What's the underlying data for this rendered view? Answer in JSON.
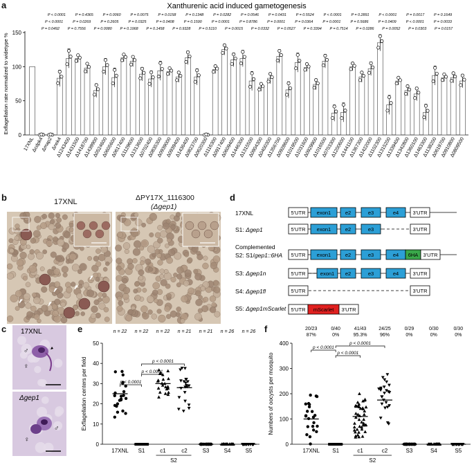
{
  "panels": {
    "a": {
      "letter": "a",
      "title": "Xanthurenic acid induced gametogenesis",
      "ylabel": "Exflagellation rate normalized to widetype %",
      "pvals_row1": [
        "P < 0.0001",
        "P = 0.4365",
        "P = 0.0060",
        "P = 0.0075",
        "P = 0.0158",
        "P = 0.1348",
        "P = 0.0282",
        "P = 0.0546",
        "P = 0.0431",
        "P = 0.5524",
        "P < 0.0001",
        "P = 0.2891",
        "P < 0.0001",
        "P = 0.0017",
        "P = 0.1649"
      ],
      "pvals_row2": [
        "P < 0.0001",
        "P = 0.0269",
        "P = 0.2605",
        "P = 0.0325",
        "P = 0.0408",
        "P = 0.1590",
        "P = 0.0001",
        "P = 0.8786",
        "P = 0.0001",
        "P = 0.0364",
        "P = 0.0001",
        "P = 0.5686",
        "P = 0.0409",
        "P < 0.0001",
        "P = 0.0033"
      ],
      "pvals_row3": [
        "P = 0.0492",
        "P = 0.7556",
        "P = 0.0080",
        "P = 0.1968",
        "P = 0.1458",
        "P = 0.9328",
        "P = 0.5110",
        "P = 0.0015",
        "P = 0.0332",
        "P = 0.0527",
        "P = 0.3394",
        "P = 0.7514",
        "P = 0.0286",
        "P = 0.0052",
        "P = 0.0303",
        "P = 0.0157"
      ]
    },
    "b": {
      "letter": "b",
      "label_left": "17XNL",
      "label_right_1": "ΔPY17X_1116300",
      "label_right_2": "(Δgep1)"
    },
    "c": {
      "letter": "c",
      "label_top": "17XNL",
      "label_bottom": "Δgep1"
    },
    "d": {
      "letter": "d",
      "rows": [
        {
          "label": "17XNL"
        },
        {
          "label": "S1: Δgep1"
        },
        {
          "label": "Complemented"
        },
        {
          "label": "S2: S1/gep1::6HA"
        },
        {
          "label": "S3: Δgep1n"
        },
        {
          "label": "S4: Δgep1fl"
        },
        {
          "label": "S5: Δgep1mScarlet"
        }
      ],
      "utr5": "5'UTR",
      "utr3": "3'UTR",
      "exon1": "exon1",
      "e2": "e2",
      "e3": "e3",
      "e4": "e4",
      "ha": "6HA",
      "mscarlet": "mScarlet",
      "colors": {
        "exon": "#2c9fd6",
        "ha": "#3aa84a",
        "mscarlet": "#e0201f"
      }
    },
    "e": {
      "letter": "e",
      "ylabel": "Exflagellation centers per field",
      "n_labels": [
        "n = 22",
        "n = 22",
        "n = 22",
        "n = 21",
        "n = 21",
        "n = 26",
        "n = 26"
      ],
      "p1": "p < 0.0001",
      "p2": "p < 0.0001",
      "p3": "p < 0.0001",
      "group_label": "S2"
    },
    "f": {
      "letter": "f",
      "ylabel": "Numbers of oocysts per mosquito",
      "counts": [
        "20/23",
        "0/40",
        "41/43",
        "24/25",
        "0/29",
        "0/30",
        "0/30"
      ],
      "percents": [
        "87%",
        "0%",
        "95.3%",
        "96%",
        "0%",
        "0%",
        "0%"
      ],
      "p1": "p < 0.0001",
      "p2": "p < 0.0001",
      "p3": "p < 0.0001",
      "group_label": "S2"
    }
  },
  "chart_data": [
    {
      "type": "bar",
      "title": "Xanthurenic acid induced gametogenesis",
      "xlabel": "",
      "ylabel": "Exflagellation rate normalized to widetype %",
      "ylim": [
        0,
        150
      ],
      "yticks": [
        0,
        50,
        100,
        150
      ],
      "categories": [
        "17XNL",
        "Δcdpk4",
        "Δmap2",
        "Δnek4",
        "Δ1243400",
        "Δ1431500",
        "Δ1418700",
        "Δ1439900",
        "Δ0524600",
        "Δ0605600",
        "Δ0617400",
        "Δ1129600",
        "Δ1313600",
        "Δ0702400",
        "Δ0835300",
        "Δ0939000",
        "Δ0939400",
        "Δ1436400",
        "Δ0823700",
        "Δ0620300",
        "Δ1116300",
        "Δ0917400",
        "Δ0609400",
        "Δ1446300",
        "Δ1315500",
        "Δ0904300",
        "Δ0400300",
        "Δ1356700",
        "Δ0928600",
        "Δ1019500",
        "Δ1031600",
        "Δ0929900",
        "Δ1016500",
        "Δ0703300",
        "Δ1200600",
        "Δ1441100",
        "Δ1367300",
        "Δ1422000",
        "Δ1102300",
        "Δ1315200",
        "Δ1339400",
        "Δ1342800",
        "Δ1360100",
        "Δ1463300",
        "Δ1138200",
        "Δ0619700",
        "Δ0910800",
        "Δ0809500"
      ],
      "values": [
        100,
        0,
        0,
        83,
        112,
        112,
        98,
        65,
        100,
        84,
        113,
        108,
        89,
        82,
        94,
        93,
        85,
        113,
        85,
        0,
        96,
        125,
        110,
        112,
        79,
        70,
        83,
        115,
        66,
        106,
        99,
        74,
        108,
        32,
        33,
        100,
        85,
        97,
        135,
        44,
        79,
        65,
        60,
        33,
        87,
        84,
        84,
        79
      ]
    },
    {
      "type": "scatter",
      "title": "",
      "ylabel": "Exflagellation centers per field",
      "categories": [
        "17XNL",
        "S1",
        "c1",
        "c2",
        "S3",
        "S4",
        "S5"
      ],
      "ylim": [
        0,
        50
      ],
      "yticks": [
        0,
        10,
        20,
        30,
        40,
        50
      ],
      "medians": [
        25,
        0,
        30,
        28,
        0,
        0,
        0
      ],
      "n": [
        22,
        22,
        22,
        21,
        21,
        26,
        26
      ]
    },
    {
      "type": "scatter",
      "title": "",
      "ylabel": "Numbers of oocysts per mosquito",
      "categories": [
        "17XNL",
        "S1",
        "c1",
        "c2",
        "S3",
        "S4",
        "S5"
      ],
      "ylim": [
        0,
        400
      ],
      "yticks": [
        0,
        100,
        200,
        300,
        400
      ],
      "medians": [
        100,
        0,
        110,
        175,
        0,
        0,
        0
      ]
    }
  ]
}
